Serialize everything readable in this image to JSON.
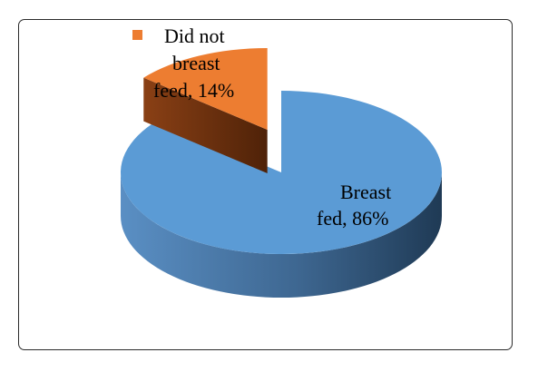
{
  "chart_data": {
    "type": "pie",
    "title": "",
    "three_d": true,
    "slices": [
      {
        "label_lines": [
          "Breast",
          "fed, 86%"
        ],
        "value": 86,
        "color": "#5b9bd5",
        "side_color_dark": "#2e4f70",
        "side_color_light": "#5a8fc4"
      },
      {
        "label_lines": [
          "Did not",
          "breast",
          "feed, 14%"
        ],
        "value": 14,
        "color": "#ed7d31",
        "side_color_dark": "#5a2a0d",
        "side_color_light": "#8a4015",
        "exploded": true
      }
    ],
    "legend": {
      "entries": [
        "Did not"
      ],
      "position": "top-left",
      "marker_color": "#ed7d31"
    }
  }
}
